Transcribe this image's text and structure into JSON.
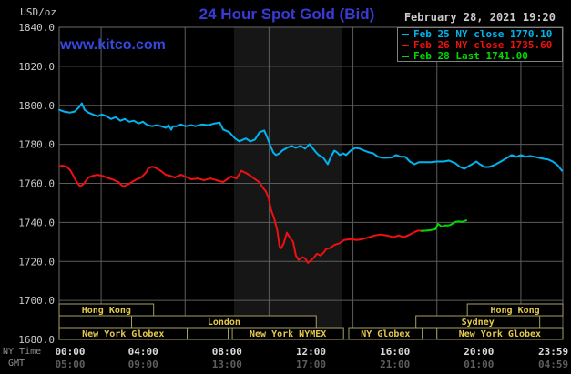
{
  "header": {
    "unit_label": "USD/oz",
    "title": "24 Hour Spot Gold (Bid)",
    "datetime": "February 28, 2021 19:20",
    "watermark": "www.kitco.com"
  },
  "legend": {
    "items": [
      {
        "label": "Feb 25 NY close 1770.10",
        "color": "#00b4f0"
      },
      {
        "label": "Feb 26 NY close 1735.60",
        "color": "#f01010"
      },
      {
        "label": "Feb 28 Last 1741.00",
        "color": "#00d800"
      }
    ]
  },
  "axes": {
    "ny_caption": "NY Time",
    "gmt_caption": "GMT",
    "y_ticks": [
      "1840.0",
      "1820.0",
      "1800.0",
      "1780.0",
      "1760.0",
      "1740.0",
      "1720.0",
      "1700.0",
      "1680.0"
    ],
    "y_tick_values": [
      1840,
      1820,
      1800,
      1780,
      1760,
      1740,
      1720,
      1700,
      1680
    ],
    "x_ticks": [
      {
        "h": 0,
        "ny": "00:00",
        "gmt": "05:00"
      },
      {
        "h": 4,
        "ny": "04:00",
        "gmt": "09:00"
      },
      {
        "h": 8,
        "ny": "08:00",
        "gmt": "13:00"
      },
      {
        "h": 12,
        "ny": "12:00",
        "gmt": "17:00"
      },
      {
        "h": 16,
        "ny": "16:00",
        "gmt": "21:00"
      },
      {
        "h": 20,
        "ny": "20:00",
        "gmt": "01:00"
      },
      {
        "h": 23.983,
        "ny": "23:59",
        "gmt": "04:59"
      }
    ],
    "v_gridline_hours": [
      2,
      6,
      10,
      14,
      18,
      22
    ],
    "h_gridline_values": [
      1820,
      1800,
      1780,
      1760,
      1740,
      1720,
      1700
    ]
  },
  "band": {
    "start": 8.33,
    "end": 13.5
  },
  "sessions": {
    "rows": [
      [
        {
          "label": "Hong Kong",
          "start": 0,
          "end": 4.5
        },
        {
          "label": "Hong Kong",
          "start": 19.45,
          "end": 24
        }
      ],
      [
        {
          "label": "",
          "start": 0,
          "end": 3.45
        },
        {
          "label": "London",
          "start": 3.45,
          "end": 12.25
        },
        {
          "label": "Sydney",
          "start": 17.0,
          "end": 22.9
        }
      ],
      [
        {
          "label": "New York Globex",
          "start": 0,
          "end": 6.1
        },
        {
          "label": "",
          "start": 6.1,
          "end": 8.05
        },
        {
          "label": "New York NYMEX",
          "start": 8.25,
          "end": 13.55
        },
        {
          "label": "NY Globex",
          "start": 13.8,
          "end": 17.3
        },
        {
          "label": "New York Globex",
          "start": 18.0,
          "end": 24
        }
      ]
    ]
  },
  "colors": {
    "background": "#000000",
    "band": "#161616",
    "grid": "#5c5c5c",
    "plot_border": "#6a6a6a",
    "axis_text": "#c9c9c9",
    "ny_tick_text": "#d9d9d9",
    "gmt_tick_text": "#5e5e5e",
    "caption_text": "#8f8f8f",
    "session_border": "#a59f62",
    "session_text": "#e4c94f",
    "title": "#3a3ad6",
    "watermark": "#3448e0",
    "legend_border": "#808080"
  },
  "chart_data": {
    "type": "line",
    "title": "24 Hour Spot Gold (Bid)",
    "ylabel": "USD/oz",
    "xlabel": "NY Time (hours 00:00-23:59)",
    "ylim": [
      1680,
      1840
    ],
    "xlim_hours": [
      0,
      24
    ],
    "grid": true,
    "legend_position": "top-right",
    "series": [
      {
        "name": "Feb 25 NY close 1770.10",
        "color": "#00b4f0",
        "points": [
          [
            0,
            1797.7
          ],
          [
            0.22,
            1796.8
          ],
          [
            0.52,
            1796.3
          ],
          [
            0.74,
            1796.8
          ],
          [
            0.95,
            1799.1
          ],
          [
            1.08,
            1801
          ],
          [
            1.21,
            1797.7
          ],
          [
            1.39,
            1796.3
          ],
          [
            1.61,
            1795.3
          ],
          [
            1.82,
            1794.4
          ],
          [
            2.04,
            1795.3
          ],
          [
            2.26,
            1794.4
          ],
          [
            2.47,
            1793
          ],
          [
            2.69,
            1793.9
          ],
          [
            2.91,
            1792.1
          ],
          [
            3.13,
            1793
          ],
          [
            3.34,
            1791.6
          ],
          [
            3.56,
            1792.1
          ],
          [
            3.78,
            1790.7
          ],
          [
            3.99,
            1791.6
          ],
          [
            4.21,
            1789.8
          ],
          [
            4.43,
            1789.3
          ],
          [
            4.64,
            1789.8
          ],
          [
            4.86,
            1789.3
          ],
          [
            5.08,
            1788.4
          ],
          [
            5.21,
            1789.8
          ],
          [
            5.34,
            1787.5
          ],
          [
            5.42,
            1789.3
          ],
          [
            5.6,
            1789.3
          ],
          [
            5.8,
            1790.2
          ],
          [
            6,
            1789.3
          ],
          [
            6.3,
            1789.8
          ],
          [
            6.5,
            1789.3
          ],
          [
            6.8,
            1790.2
          ],
          [
            7.1,
            1789.8
          ],
          [
            7.4,
            1790.7
          ],
          [
            7.65,
            1791.1
          ],
          [
            7.81,
            1787.6
          ],
          [
            8.11,
            1786.2
          ],
          [
            8.38,
            1783
          ],
          [
            8.59,
            1781.5
          ],
          [
            8.77,
            1782.5
          ],
          [
            8.9,
            1783
          ],
          [
            9.11,
            1781.5
          ],
          [
            9.33,
            1782.5
          ],
          [
            9.55,
            1786.2
          ],
          [
            9.77,
            1787.1
          ],
          [
            9.9,
            1783.9
          ],
          [
            10.07,
            1779.2
          ],
          [
            10.2,
            1775.9
          ],
          [
            10.33,
            1774.5
          ],
          [
            10.5,
            1775.4
          ],
          [
            10.63,
            1776.8
          ],
          [
            10.85,
            1778.2
          ],
          [
            11.07,
            1779.2
          ],
          [
            11.28,
            1778.2
          ],
          [
            11.5,
            1779.2
          ],
          [
            11.72,
            1777.8
          ],
          [
            11.93,
            1780.1
          ],
          [
            12.07,
            1778.2
          ],
          [
            12.24,
            1775.9
          ],
          [
            12.37,
            1774.5
          ],
          [
            12.59,
            1773.1
          ],
          [
            12.8,
            1769.8
          ],
          [
            12.93,
            1773.1
          ],
          [
            13.11,
            1776.8
          ],
          [
            13.24,
            1775.9
          ],
          [
            13.37,
            1774.5
          ],
          [
            13.54,
            1775.4
          ],
          [
            13.67,
            1774.5
          ],
          [
            13.89,
            1776.8
          ],
          [
            14.11,
            1778.2
          ],
          [
            14.32,
            1777.8
          ],
          [
            14.54,
            1776.8
          ],
          [
            14.76,
            1775.9
          ],
          [
            14.97,
            1775.4
          ],
          [
            15.19,
            1773.6
          ],
          [
            15.41,
            1773.1
          ],
          [
            15.62,
            1773.1
          ],
          [
            15.84,
            1773.3
          ],
          [
            16.06,
            1774.5
          ],
          [
            16.28,
            1773.6
          ],
          [
            16.49,
            1773.6
          ],
          [
            16.71,
            1771.2
          ],
          [
            16.93,
            1769.8
          ],
          [
            17.14,
            1770.8
          ],
          [
            17.45,
            1770.8
          ],
          [
            17.71,
            1770.8
          ],
          [
            18.01,
            1771.2
          ],
          [
            18.32,
            1771.2
          ],
          [
            18.58,
            1771.7
          ],
          [
            18.88,
            1770.3
          ],
          [
            19.1,
            1768.4
          ],
          [
            19.31,
            1767.5
          ],
          [
            19.53,
            1768.9
          ],
          [
            19.75,
            1770.3
          ],
          [
            19.88,
            1771.2
          ],
          [
            20.05,
            1769.8
          ],
          [
            20.27,
            1768.4
          ],
          [
            20.48,
            1768.4
          ],
          [
            20.75,
            1769.4
          ],
          [
            21.05,
            1771.2
          ],
          [
            21.35,
            1773.1
          ],
          [
            21.57,
            1774.5
          ],
          [
            21.79,
            1773.6
          ],
          [
            22.01,
            1774.5
          ],
          [
            22.22,
            1773.6
          ],
          [
            22.44,
            1774
          ],
          [
            22.66,
            1773.6
          ],
          [
            22.87,
            1773.1
          ],
          [
            23.09,
            1772.6
          ],
          [
            23.31,
            1772.2
          ],
          [
            23.52,
            1771.2
          ],
          [
            23.74,
            1769.4
          ],
          [
            23.96,
            1766.5
          ]
        ]
      },
      {
        "name": "Feb 26 NY close 1735.60",
        "color": "#f01010",
        "points": [
          [
            0,
            1768.6
          ],
          [
            0.13,
            1769.1
          ],
          [
            0.35,
            1768.6
          ],
          [
            0.52,
            1766.8
          ],
          [
            0.65,
            1764.4
          ],
          [
            0.78,
            1761.6
          ],
          [
            1,
            1758.4
          ],
          [
            1.17,
            1759.8
          ],
          [
            1.39,
            1763
          ],
          [
            1.61,
            1763.9
          ],
          [
            1.82,
            1764.4
          ],
          [
            2.04,
            1763.9
          ],
          [
            2.26,
            1763
          ],
          [
            2.52,
            1762.1
          ],
          [
            2.82,
            1760.7
          ],
          [
            3.04,
            1758.4
          ],
          [
            3.34,
            1759.8
          ],
          [
            3.6,
            1761.6
          ],
          [
            3.9,
            1763
          ],
          [
            4.12,
            1765.3
          ],
          [
            4.25,
            1767.7
          ],
          [
            4.43,
            1768.6
          ],
          [
            4.64,
            1767.7
          ],
          [
            4.86,
            1766.3
          ],
          [
            5.08,
            1764.4
          ],
          [
            5.29,
            1763.9
          ],
          [
            5.5,
            1763
          ],
          [
            5.8,
            1764.4
          ],
          [
            6,
            1763.5
          ],
          [
            6.3,
            1762.1
          ],
          [
            6.6,
            1762.5
          ],
          [
            6.9,
            1761.6
          ],
          [
            7.2,
            1762.5
          ],
          [
            7.5,
            1761.6
          ],
          [
            7.81,
            1760.7
          ],
          [
            8,
            1762.1
          ],
          [
            8.2,
            1763.5
          ],
          [
            8.45,
            1762.5
          ],
          [
            8.68,
            1766.5
          ],
          [
            8.9,
            1765.3
          ],
          [
            9.1,
            1764
          ],
          [
            9.33,
            1762.2
          ],
          [
            9.55,
            1760.5
          ],
          [
            9.68,
            1758.2
          ],
          [
            9.85,
            1755.8
          ],
          [
            9.98,
            1752.5
          ],
          [
            10.1,
            1746.4
          ],
          [
            10.25,
            1741.8
          ],
          [
            10.4,
            1735.6
          ],
          [
            10.5,
            1727.7
          ],
          [
            10.57,
            1726.8
          ],
          [
            10.7,
            1729.1
          ],
          [
            10.85,
            1734.7
          ],
          [
            10.98,
            1732.4
          ],
          [
            11.15,
            1730
          ],
          [
            11.28,
            1723
          ],
          [
            11.41,
            1720.7
          ],
          [
            11.59,
            1722.1
          ],
          [
            11.72,
            1721.6
          ],
          [
            11.85,
            1719.3
          ],
          [
            12.02,
            1720.7
          ],
          [
            12.15,
            1722.1
          ],
          [
            12.28,
            1723.9
          ],
          [
            12.46,
            1723
          ],
          [
            12.59,
            1724.4
          ],
          [
            12.72,
            1726.3
          ],
          [
            12.89,
            1726.8
          ],
          [
            13.02,
            1727.7
          ],
          [
            13.15,
            1728.6
          ],
          [
            13.32,
            1729.1
          ],
          [
            13.45,
            1730
          ],
          [
            13.58,
            1731
          ],
          [
            13.89,
            1731.4
          ],
          [
            14.19,
            1731
          ],
          [
            14.45,
            1731.4
          ],
          [
            14.76,
            1732.4
          ],
          [
            15.06,
            1733.3
          ],
          [
            15.32,
            1733.8
          ],
          [
            15.62,
            1733.3
          ],
          [
            15.93,
            1732.4
          ],
          [
            16.19,
            1733.3
          ],
          [
            16.41,
            1732.4
          ],
          [
            16.62,
            1733.3
          ],
          [
            16.93,
            1735
          ],
          [
            17.1,
            1735.8
          ],
          [
            17.36,
            1735.6
          ]
        ]
      },
      {
        "name": "Feb 28 Last 1741.00",
        "color": "#00d800",
        "points": [
          [
            17.27,
            1735.6
          ],
          [
            17.5,
            1735.8
          ],
          [
            17.7,
            1736
          ],
          [
            17.93,
            1736.5
          ],
          [
            18.05,
            1739.3
          ],
          [
            18.23,
            1737.9
          ],
          [
            18.36,
            1738.4
          ],
          [
            18.53,
            1738.4
          ],
          [
            18.66,
            1738.8
          ],
          [
            18.88,
            1740.2
          ],
          [
            19.05,
            1740.5
          ],
          [
            19.2,
            1740.2
          ],
          [
            19.3,
            1740.7
          ],
          [
            19.4,
            1741
          ]
        ]
      }
    ]
  }
}
